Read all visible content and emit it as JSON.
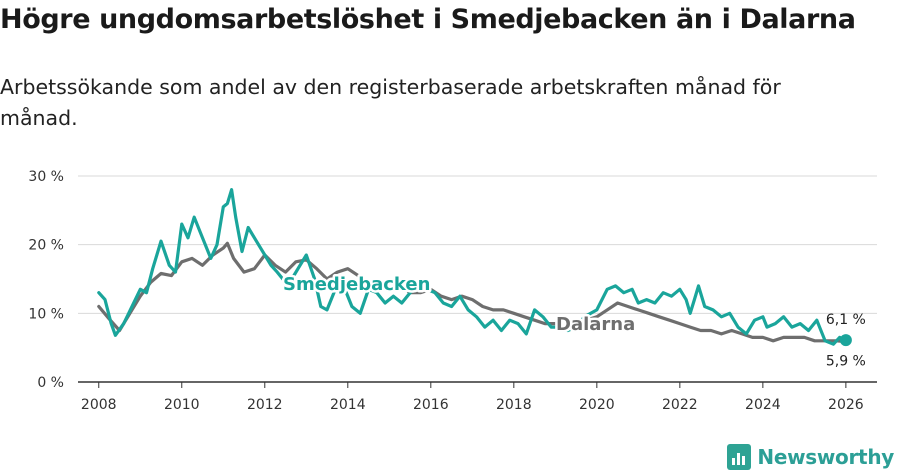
{
  "header": {
    "title": "Högre ungdomsarbetslöshet i Smedjebacken än i Dalarna",
    "subtitle": "Arbetssökande som andel av den registerbaserade arbetskraften månad för månad."
  },
  "brand": {
    "name": "Newsworthy",
    "color": "#2c9f96"
  },
  "chart_data": {
    "type": "line",
    "title": "Högre ungdomsarbetslöshet i Smedjebacken än i Dalarna",
    "ylim": [
      0,
      30
    ],
    "xlim": [
      2007.5,
      2026.75
    ],
    "yticks": [
      0,
      10,
      20,
      30
    ],
    "ytick_labels": [
      "0 %",
      "10 %",
      "20 %",
      "30 %"
    ],
    "xticks": [
      2008,
      2010,
      2012,
      2014,
      2016,
      2018,
      2020,
      2022,
      2024,
      2026
    ],
    "xtick_labels": [
      "2008",
      "2010",
      "2012",
      "2014",
      "2016",
      "2018",
      "2020",
      "2022",
      "2024",
      "2026"
    ],
    "grid": true,
    "series": [
      {
        "name": "Dalarna",
        "label": "Dalarna",
        "color": "#6e6e6e",
        "end_label": "5,9 %",
        "points": [
          [
            2008.0,
            11.0
          ],
          [
            2008.25,
            9.2
          ],
          [
            2008.5,
            7.5
          ],
          [
            2008.75,
            10.0
          ],
          [
            2009.0,
            12.5
          ],
          [
            2009.25,
            14.5
          ],
          [
            2009.5,
            15.8
          ],
          [
            2009.75,
            15.5
          ],
          [
            2010.0,
            17.5
          ],
          [
            2010.25,
            18.0
          ],
          [
            2010.5,
            17.0
          ],
          [
            2010.75,
            18.5
          ],
          [
            2011.0,
            19.5
          ],
          [
            2011.1,
            20.2
          ],
          [
            2011.25,
            18.0
          ],
          [
            2011.5,
            16.0
          ],
          [
            2011.75,
            16.5
          ],
          [
            2012.0,
            18.5
          ],
          [
            2012.25,
            17.0
          ],
          [
            2012.5,
            16.0
          ],
          [
            2012.75,
            17.5
          ],
          [
            2013.0,
            17.8
          ],
          [
            2013.25,
            16.5
          ],
          [
            2013.5,
            15.0
          ],
          [
            2013.75,
            16.0
          ],
          [
            2014.0,
            16.5
          ],
          [
            2014.25,
            15.5
          ],
          [
            2014.5,
            14.0
          ],
          [
            2014.75,
            14.5
          ],
          [
            2015.0,
            13.5
          ],
          [
            2015.25,
            14.0
          ],
          [
            2015.5,
            13.0
          ],
          [
            2015.75,
            13.0
          ],
          [
            2016.0,
            13.5
          ],
          [
            2016.25,
            12.5
          ],
          [
            2016.5,
            12.0
          ],
          [
            2016.75,
            12.5
          ],
          [
            2017.0,
            12.0
          ],
          [
            2017.25,
            11.0
          ],
          [
            2017.5,
            10.5
          ],
          [
            2017.75,
            10.5
          ],
          [
            2018.0,
            10.0
          ],
          [
            2018.25,
            9.5
          ],
          [
            2018.5,
            9.0
          ],
          [
            2018.75,
            8.5
          ],
          [
            2019.0,
            8.5
          ],
          [
            2019.25,
            8.0
          ],
          [
            2019.5,
            8.0
          ],
          [
            2019.75,
            9.0
          ],
          [
            2020.0,
            9.5
          ],
          [
            2020.25,
            10.5
          ],
          [
            2020.5,
            11.5
          ],
          [
            2020.75,
            11.0
          ],
          [
            2021.0,
            10.5
          ],
          [
            2021.25,
            10.0
          ],
          [
            2021.5,
            9.5
          ],
          [
            2021.75,
            9.0
          ],
          [
            2022.0,
            8.5
          ],
          [
            2022.25,
            8.0
          ],
          [
            2022.5,
            7.5
          ],
          [
            2022.75,
            7.5
          ],
          [
            2023.0,
            7.0
          ],
          [
            2023.25,
            7.5
          ],
          [
            2023.5,
            7.0
          ],
          [
            2023.75,
            6.5
          ],
          [
            2024.0,
            6.5
          ],
          [
            2024.25,
            6.0
          ],
          [
            2024.5,
            6.5
          ],
          [
            2024.75,
            6.5
          ],
          [
            2025.0,
            6.5
          ],
          [
            2025.25,
            6.0
          ],
          [
            2025.5,
            6.0
          ],
          [
            2025.75,
            6.0
          ],
          [
            2026.0,
            5.9
          ]
        ]
      },
      {
        "name": "Smedjebacken",
        "label": "Smedjebacken",
        "color": "#1aa59b",
        "end_label": "6,1 %",
        "points": [
          [
            2008.0,
            13.0
          ],
          [
            2008.15,
            12.0
          ],
          [
            2008.3,
            8.5
          ],
          [
            2008.4,
            6.8
          ],
          [
            2008.6,
            8.5
          ],
          [
            2008.8,
            11.0
          ],
          [
            2009.0,
            13.5
          ],
          [
            2009.15,
            13.0
          ],
          [
            2009.3,
            16.5
          ],
          [
            2009.5,
            20.5
          ],
          [
            2009.7,
            17.0
          ],
          [
            2009.85,
            16.0
          ],
          [
            2010.0,
            23.0
          ],
          [
            2010.15,
            21.0
          ],
          [
            2010.3,
            24.0
          ],
          [
            2010.5,
            21.0
          ],
          [
            2010.7,
            18.0
          ],
          [
            2010.85,
            20.0
          ],
          [
            2011.0,
            25.5
          ],
          [
            2011.1,
            26.0
          ],
          [
            2011.2,
            28.0
          ],
          [
            2011.3,
            24.0
          ],
          [
            2011.45,
            19.0
          ],
          [
            2011.6,
            22.5
          ],
          [
            2011.75,
            21.0
          ],
          [
            2011.9,
            19.5
          ],
          [
            2012.0,
            18.5
          ],
          [
            2012.15,
            17.0
          ],
          [
            2012.3,
            16.0
          ],
          [
            2012.5,
            14.5
          ],
          [
            2012.65,
            15.0
          ],
          [
            2012.8,
            16.5
          ],
          [
            2013.0,
            18.5
          ],
          [
            2013.2,
            15.0
          ],
          [
            2013.35,
            11.0
          ],
          [
            2013.5,
            10.5
          ],
          [
            2013.7,
            13.5
          ],
          [
            2013.9,
            14.0
          ],
          [
            2014.1,
            11.0
          ],
          [
            2014.3,
            10.0
          ],
          [
            2014.5,
            13.5
          ],
          [
            2014.7,
            13.0
          ],
          [
            2014.9,
            11.5
          ],
          [
            2015.1,
            12.5
          ],
          [
            2015.3,
            11.5
          ],
          [
            2015.5,
            13.0
          ],
          [
            2015.7,
            14.0
          ],
          [
            2015.9,
            13.5
          ],
          [
            2016.1,
            13.0
          ],
          [
            2016.3,
            11.5
          ],
          [
            2016.5,
            11.0
          ],
          [
            2016.7,
            12.5
          ],
          [
            2016.9,
            10.5
          ],
          [
            2017.1,
            9.5
          ],
          [
            2017.3,
            8.0
          ],
          [
            2017.5,
            9.0
          ],
          [
            2017.7,
            7.5
          ],
          [
            2017.9,
            9.0
          ],
          [
            2018.1,
            8.5
          ],
          [
            2018.3,
            7.0
          ],
          [
            2018.5,
            10.5
          ],
          [
            2018.7,
            9.5
          ],
          [
            2018.9,
            8.0
          ],
          [
            2019.1,
            8.0
          ],
          [
            2019.3,
            7.5
          ],
          [
            2019.5,
            8.0
          ],
          [
            2019.7,
            9.5
          ],
          [
            2020.0,
            10.5
          ],
          [
            2020.25,
            13.5
          ],
          [
            2020.45,
            14.0
          ],
          [
            2020.65,
            13.0
          ],
          [
            2020.85,
            13.5
          ],
          [
            2021.0,
            11.5
          ],
          [
            2021.2,
            12.0
          ],
          [
            2021.4,
            11.5
          ],
          [
            2021.6,
            13.0
          ],
          [
            2021.8,
            12.5
          ],
          [
            2022.0,
            13.5
          ],
          [
            2022.15,
            12.0
          ],
          [
            2022.25,
            10.0
          ],
          [
            2022.35,
            12.0
          ],
          [
            2022.45,
            14.0
          ],
          [
            2022.6,
            11.0
          ],
          [
            2022.8,
            10.5
          ],
          [
            2023.0,
            9.5
          ],
          [
            2023.2,
            10.0
          ],
          [
            2023.4,
            8.0
          ],
          [
            2023.6,
            7.0
          ],
          [
            2023.8,
            9.0
          ],
          [
            2024.0,
            9.5
          ],
          [
            2024.1,
            8.0
          ],
          [
            2024.3,
            8.5
          ],
          [
            2024.5,
            9.5
          ],
          [
            2024.7,
            8.0
          ],
          [
            2024.9,
            8.5
          ],
          [
            2025.1,
            7.5
          ],
          [
            2025.3,
            9.0
          ],
          [
            2025.5,
            6.0
          ],
          [
            2025.7,
            5.5
          ],
          [
            2025.85,
            6.5
          ],
          [
            2026.0,
            6.1
          ]
        ]
      }
    ]
  }
}
